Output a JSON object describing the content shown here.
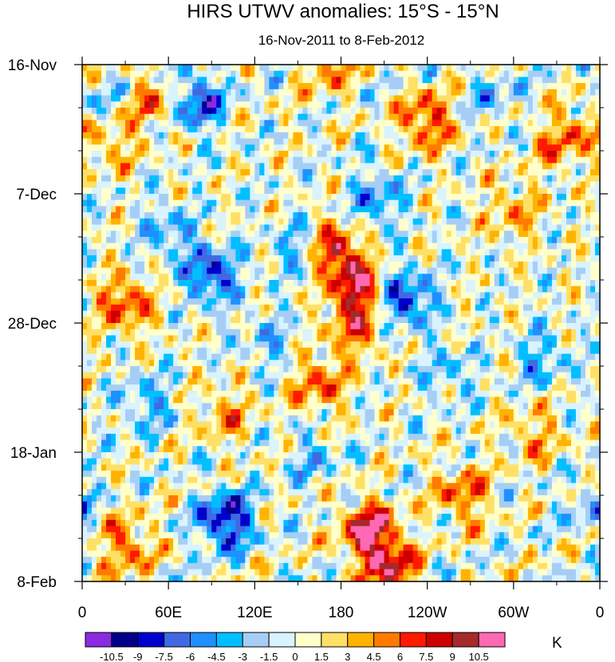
{
  "chart_data": {
    "type": "heatmap",
    "title": "HIRS UTWV anomalies: 15°S - 15°N",
    "subtitle": "16-Nov-2011 to 8-Feb-2012",
    "xlabel": "",
    "ylabel": "",
    "x_ticks": [
      "0",
      "60E",
      "120E",
      "180",
      "120W",
      "60W",
      "0"
    ],
    "y_ticks": [
      "16-Nov",
      "7-Dec",
      "28-Dec",
      "18-Jan",
      "8-Feb"
    ],
    "colorbar": {
      "unit": "K",
      "levels": [
        "-10.5",
        "-9",
        "-7.5",
        "-6",
        "-4.5",
        "-3",
        "-1.5",
        "0",
        "1.5",
        "3",
        "4.5",
        "6",
        "7.5",
        "9",
        "10.5"
      ],
      "colors": [
        "#8a2be2",
        "#00008b",
        "#0000cd",
        "#4169e1",
        "#1e90ff",
        "#00bfff",
        "#a6cef5",
        "#d9f3ff",
        "#ffffcc",
        "#ffe066",
        "#ffb300",
        "#ff7a00",
        "#ff1a00",
        "#cc0000",
        "#a52a2a",
        "#ff69b4"
      ]
    },
    "features": [
      {
        "lon": 240,
        "day": 9,
        "value": 7.5
      },
      {
        "lon": 330,
        "day": 13,
        "value": 4
      },
      {
        "lon": 300,
        "day": 24,
        "value": 4
      },
      {
        "lon": 175,
        "day": 30,
        "value": 8
      },
      {
        "lon": 190,
        "day": 36,
        "value": 9
      },
      {
        "lon": 190,
        "day": 43,
        "value": 6
      },
      {
        "lon": 165,
        "day": 52,
        "value": 6
      },
      {
        "lon": 200,
        "day": 76,
        "value": 11
      },
      {
        "lon": 215,
        "day": 82,
        "value": 8
      },
      {
        "lon": 30,
        "day": 39,
        "value": 7
      },
      {
        "lon": 20,
        "day": 12,
        "value": 5
      },
      {
        "lon": 50,
        "day": 6,
        "value": 5
      },
      {
        "lon": 30,
        "day": 78,
        "value": 6
      },
      {
        "lon": 170,
        "day": 0,
        "value": 5
      },
      {
        "lon": 350,
        "day": 10,
        "value": 4
      },
      {
        "lon": 315,
        "day": 60,
        "value": 4
      },
      {
        "lon": 265,
        "day": 70,
        "value": 6
      },
      {
        "lon": 100,
        "day": 57,
        "value": 4
      },
      {
        "lon": 80,
        "day": 6,
        "value": -8
      },
      {
        "lon": 60,
        "day": 27,
        "value": -4
      },
      {
        "lon": 90,
        "day": 34,
        "value": -8
      },
      {
        "lon": 150,
        "day": 30,
        "value": -4
      },
      {
        "lon": 225,
        "day": 38,
        "value": -8
      },
      {
        "lon": 205,
        "day": 22,
        "value": -5
      },
      {
        "lon": 100,
        "day": 74,
        "value": -10
      },
      {
        "lon": 45,
        "day": 55,
        "value": -4
      },
      {
        "lon": 160,
        "day": 64,
        "value": -3
      },
      {
        "lon": 320,
        "day": 48,
        "value": -4
      },
      {
        "lon": 10,
        "day": 8,
        "value": -4
      },
      {
        "lon": 130,
        "day": 45,
        "value": -3
      },
      {
        "lon": 355,
        "day": 72,
        "value": -3
      },
      {
        "lon": 285,
        "day": 5,
        "value": -3
      },
      {
        "lon": 255,
        "day": 50,
        "value": -3
      }
    ]
  }
}
